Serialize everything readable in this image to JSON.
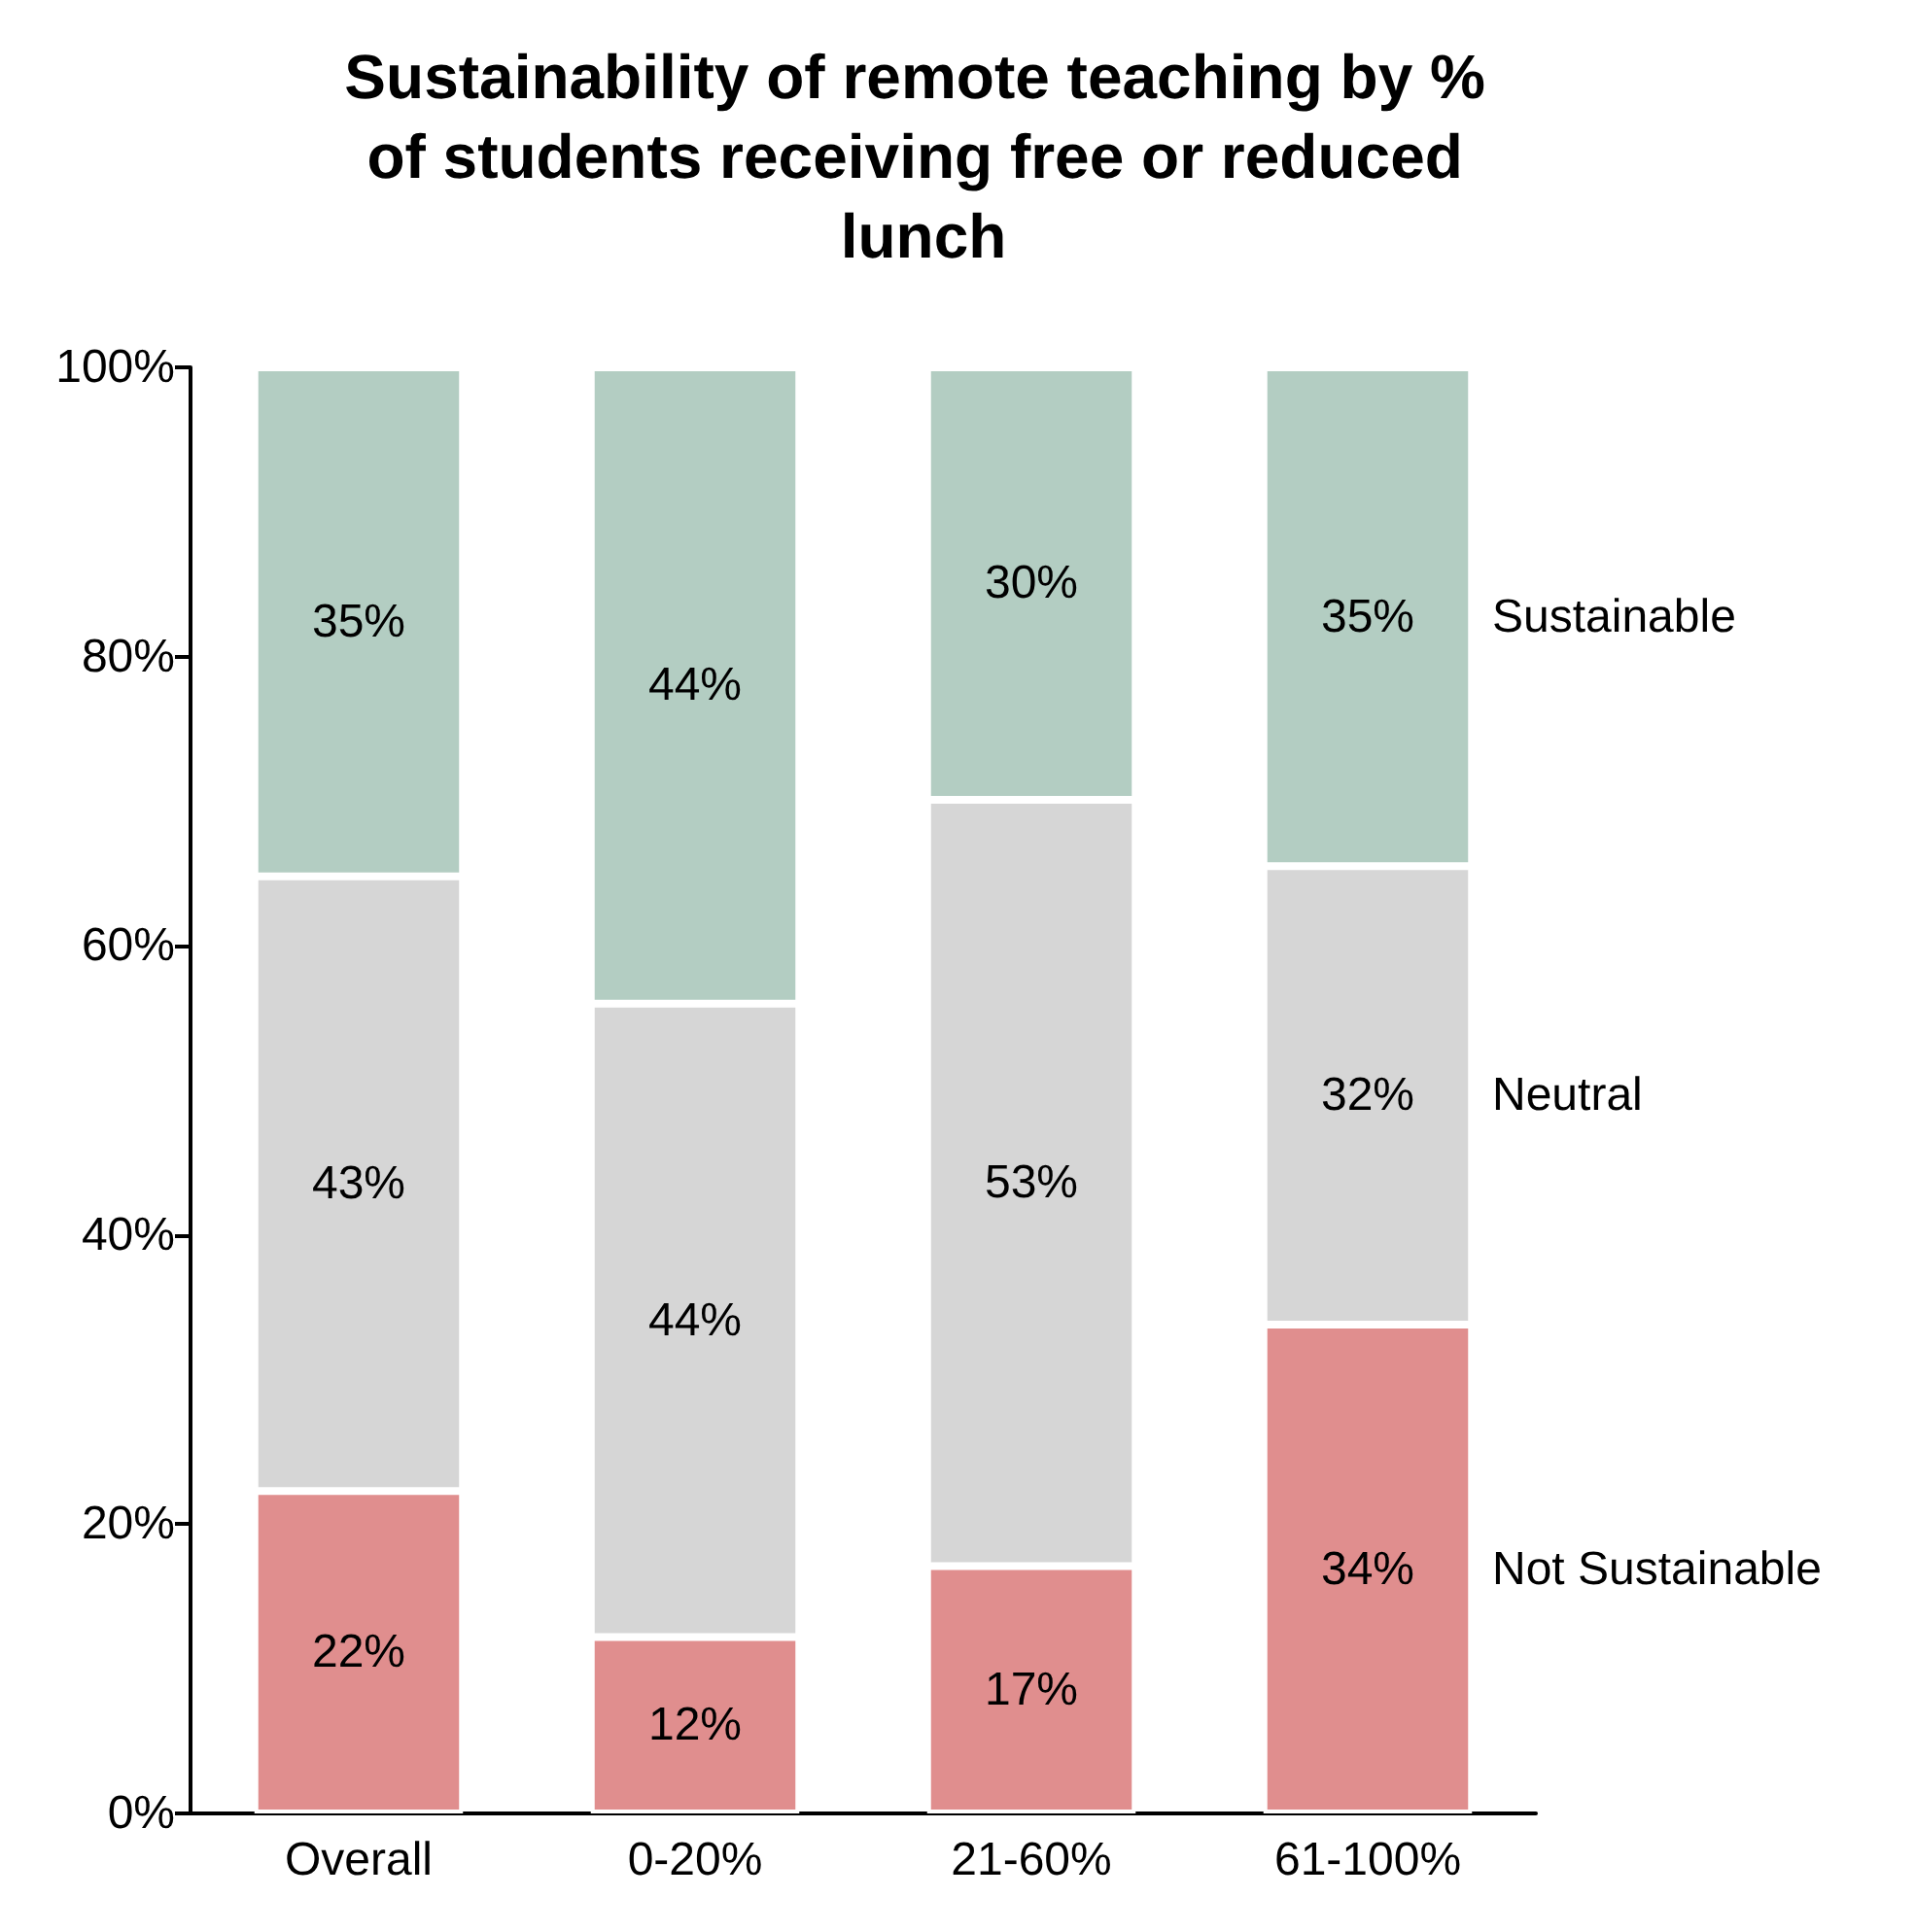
{
  "chart_data": {
    "type": "bar",
    "stacked": true,
    "title": "Sustainability of remote teaching by % of students receiving free or reduced lunch",
    "categories": [
      "Overall",
      "0-20%",
      "21-60%",
      "61-100%"
    ],
    "series": [
      {
        "name": "Not Sustainable",
        "color": "#e08e8e",
        "values": [
          22.3,
          12.2,
          17.1,
          33.8
        ],
        "value_labels": [
          "22%",
          "12%",
          "17%",
          "34%"
        ]
      },
      {
        "name": "Neutral",
        "color": "#d6d6d6",
        "values": [
          42.5,
          43.8,
          53,
          31.7
        ],
        "value_labels": [
          "43%",
          "44%",
          "53%",
          "32%"
        ]
      },
      {
        "name": "Sustainable",
        "color": "#b3cdc2",
        "values": [
          35.2,
          44,
          29.9,
          34.5
        ],
        "value_labels": [
          "35%",
          "44%",
          "30%",
          "35%"
        ]
      }
    ],
    "ylim": [
      0,
      100
    ],
    "yticks": [
      {
        "value": 0,
        "label": "0%"
      },
      {
        "value": 20,
        "label": "20%"
      },
      {
        "value": 40,
        "label": "40%"
      },
      {
        "value": 60,
        "label": "60%"
      },
      {
        "value": 80,
        "label": "80%"
      },
      {
        "value": 100,
        "label": "100%"
      }
    ],
    "grid": false,
    "legend": false
  }
}
